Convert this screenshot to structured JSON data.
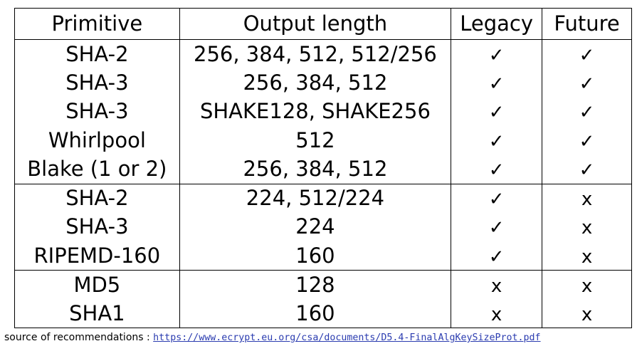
{
  "table": {
    "headers": [
      "Primitive",
      "Output length",
      "Legacy",
      "Future"
    ],
    "groups": [
      [
        {
          "primitive": "SHA-2",
          "output": "256, 384, 512, 512/256",
          "legacy": "✓",
          "future": "✓"
        },
        {
          "primitive": "SHA-3",
          "output": "256, 384, 512",
          "legacy": "✓",
          "future": "✓"
        },
        {
          "primitive": "SHA-3",
          "output": "SHAKE128, SHAKE256",
          "legacy": "✓",
          "future": "✓"
        },
        {
          "primitive": "Whirlpool",
          "output": "512",
          "legacy": "✓",
          "future": "✓"
        },
        {
          "primitive": "Blake (1 or 2)",
          "output": "256, 384, 512",
          "legacy": "✓",
          "future": "✓"
        }
      ],
      [
        {
          "primitive": "SHA-2",
          "output": "224, 512/224",
          "legacy": "✓",
          "future": "x"
        },
        {
          "primitive": "SHA-3",
          "output": "224",
          "legacy": "✓",
          "future": "x"
        },
        {
          "primitive": "RIPEMD-160",
          "output": "160",
          "legacy": "✓",
          "future": "x"
        }
      ],
      [
        {
          "primitive": "MD5",
          "output": "128",
          "legacy": "x",
          "future": "x"
        },
        {
          "primitive": "SHA1",
          "output": "160",
          "legacy": "x",
          "future": "x"
        }
      ]
    ]
  },
  "source": {
    "label": "source of recommendations : ",
    "url": "https://www.ecrypt.eu.org/csa/documents/D5.4-FinalAlgKeySizeProt.pdf",
    "url_color": "#2b3cb0"
  }
}
